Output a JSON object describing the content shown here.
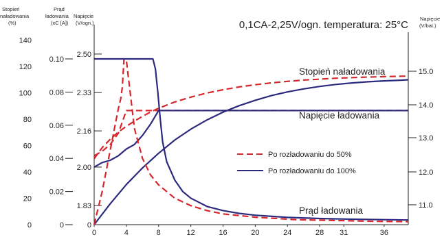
{
  "chart_data": {
    "type": "line",
    "title": "0,1CA-2,25V/ogn. temperatura: 25°C",
    "axis_headers": {
      "soc": [
        "Stopień",
        "naładowania",
        "(%)"
      ],
      "current": [
        "Prąd",
        "ładowania",
        "(xC [A])"
      ],
      "cell_voltage": [
        "Napięcie",
        "(V/ogn.)"
      ],
      "battery_voltage": [
        "Napięcie",
        "(V/bat.)"
      ]
    },
    "x_ticks": [
      "0",
      "4",
      "8",
      "12",
      "16",
      "20",
      "24",
      "28",
      "31",
      "36"
    ],
    "soc_ticks": [
      "0",
      "20",
      "40",
      "60",
      "80",
      "100",
      "120",
      "140"
    ],
    "current_ticks": [
      "0",
      "0.02",
      "0.04",
      "0.06",
      "0.08",
      "0.10"
    ],
    "cell_voltage_ticks": [
      "0",
      "1.83",
      "2.00",
      "2.16",
      "2.33",
      "2.50"
    ],
    "battery_voltage_ticks": [
      "11.0",
      "12.0",
      "13.0",
      "14.0",
      "15.0"
    ],
    "xlim": [
      0,
      39
    ],
    "soc_ylim": [
      0,
      140
    ],
    "curve_labels": {
      "soc": "Stopień naładowania",
      "voltage": "Napięcie ładowania",
      "current": "Prąd ładowania"
    },
    "legend": [
      {
        "name": "Po rozładowaniu do 50%",
        "style": "dashed",
        "color": "#d7262b"
      },
      {
        "name": "Po rozładowaniu do 100%",
        "style": "solid",
        "color": "#2b2a7e"
      }
    ],
    "series": [
      {
        "name": "Po rozładowaniu do 50%",
        "group": "soc",
        "style": "dashed",
        "color": "#d7262b",
        "x": [
          0,
          1,
          2,
          3,
          4,
          5,
          6,
          7,
          8,
          10,
          12,
          14,
          16,
          18,
          20,
          22,
          24,
          26,
          28,
          30,
          32,
          34,
          36,
          38,
          39
        ],
        "y": [
          50,
          58.4,
          64.8,
          70.2,
          74.6,
          78.5,
          82.1,
          85.4,
          88.2,
          93,
          96.7,
          99.8,
          102.3,
          104.4,
          106.1,
          107.5,
          108.6,
          109.6,
          110.3,
          111,
          111.5,
          111.9,
          112.2,
          112.5,
          112.6
        ]
      },
      {
        "name": "Po rozładowaniu do 100%",
        "group": "soc",
        "style": "solid",
        "color": "#2b2a7e",
        "x": [
          0,
          2,
          4,
          6,
          8,
          10,
          12,
          14,
          16,
          18,
          20,
          22,
          24,
          26,
          28,
          30,
          32,
          34,
          36,
          38,
          39
        ],
        "y": [
          0,
          15.9,
          30.5,
          43,
          54.1,
          64.1,
          72.4,
          79.4,
          85.3,
          90.2,
          94.3,
          97.8,
          100.6,
          102.9,
          104.8,
          106.3,
          107.4,
          108.3,
          109,
          109.5,
          109.8
        ]
      },
      {
        "name": "Po rozładowaniu do 50%",
        "group": "cell_voltage",
        "style": "dashed",
        "color": "#d7262b",
        "x": [
          0,
          1,
          2,
          3,
          3.5,
          4,
          5,
          6,
          7,
          39
        ],
        "y": [
          2.05,
          2.07,
          2.1,
          2.15,
          2.2,
          2.25,
          2.25,
          2.25,
          2.25,
          2.25
        ]
      },
      {
        "name": "Po rozładowaniu do 100%",
        "group": "cell_voltage",
        "style": "solid",
        "color": "#2b2a7e",
        "x": [
          0,
          1,
          2,
          3,
          4,
          5,
          6,
          7,
          7.5,
          8,
          10,
          15,
          20,
          25,
          30,
          35,
          39
        ],
        "y": [
          2,
          2.02,
          2.03,
          2.05,
          2.08,
          2.1,
          2.14,
          2.19,
          2.22,
          2.25,
          2.25,
          2.25,
          2.25,
          2.25,
          2.25,
          2.25,
          2.25
        ]
      },
      {
        "name": "Po rozładowaniu do 50%",
        "group": "current",
        "style": "dashed",
        "color": "#d7262b",
        "x": [
          0,
          1,
          2,
          3,
          3.3,
          3.5,
          3.7,
          4,
          5,
          6,
          7,
          8,
          10,
          12,
          14,
          16,
          20,
          25,
          30,
          35,
          39
        ],
        "y": [
          0,
          0.02,
          0.045,
          0.07,
          0.076,
          0.083,
          0.1,
          0.099,
          0.058,
          0.04,
          0.03,
          0.024,
          0.016,
          0.0115,
          0.0085,
          0.0065,
          0.0045,
          0.003,
          0.0025,
          0.002,
          0.0018
        ]
      },
      {
        "name": "Po rozładowaniu do 100%",
        "group": "current",
        "style": "solid",
        "color": "#2b2a7e",
        "x": [
          0,
          7.3,
          7.6,
          7.9,
          8.2,
          8.5,
          9,
          10,
          11,
          12,
          14,
          16,
          18,
          20,
          24,
          28,
          32,
          36,
          39
        ],
        "y": [
          0.1,
          0.1,
          0.094,
          0.08,
          0.064,
          0.05,
          0.038,
          0.027,
          0.02,
          0.016,
          0.011,
          0.0085,
          0.0068,
          0.0057,
          0.0044,
          0.0037,
          0.0033,
          0.003,
          0.0028
        ]
      }
    ],
    "grid": false,
    "legend_position": "center-right"
  }
}
